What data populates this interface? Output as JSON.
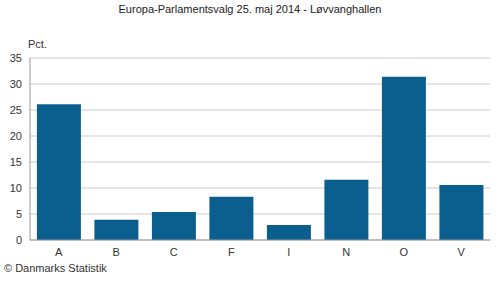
{
  "chart_data": {
    "type": "bar",
    "title": "Europa-Parlamentsvalg 25. maj 2014 - Løvvanghallen",
    "y_label": "Pct.",
    "source": "© Danmarks Statistik",
    "categories": [
      "A",
      "B",
      "C",
      "F",
      "I",
      "N",
      "O",
      "V"
    ],
    "values": [
      26.1,
      3.9,
      5.4,
      8.3,
      2.9,
      11.6,
      31.4,
      10.6
    ],
    "color": "#0b5f8f",
    "ylim": [
      0,
      35
    ],
    "yticks": [
      0,
      5,
      10,
      15,
      20,
      25,
      30,
      35
    ],
    "grid": true
  }
}
